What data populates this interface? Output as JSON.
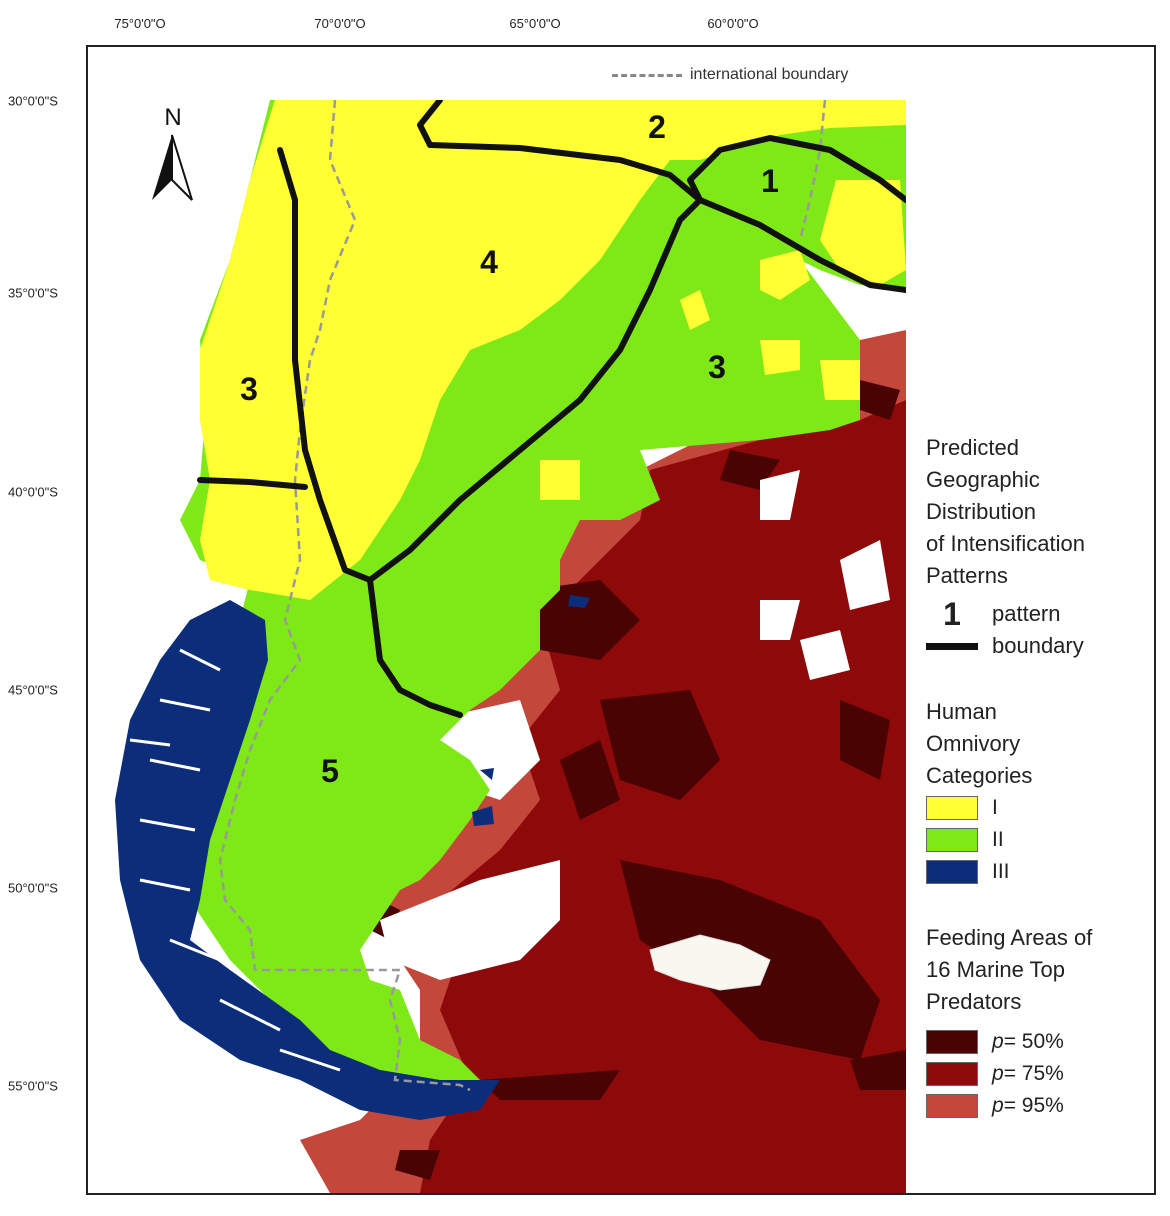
{
  "lon_ticks": [
    "75°0'0\"O",
    "70°0'0\"O",
    "65°0'0\"O",
    "60°0'0\"O"
  ],
  "lat_ticks": [
    "30°0'0\"S",
    "35°0'0\"S",
    "40°0'0\"S",
    "45°0'0\"S",
    "50°0'0\"S",
    "55°0'0\"S"
  ],
  "north_label": "N",
  "international_boundary_label": "international boundary",
  "region_labels": [
    "1",
    "2",
    "3",
    "3",
    "4",
    "5"
  ],
  "legend": {
    "title": [
      "Predicted",
      "Geographic",
      "Distribution",
      "of Intensification",
      "Patterns"
    ],
    "pattern_number": "1",
    "pattern_label": "pattern",
    "boundary_label": "boundary",
    "omnivory_title": [
      "Human",
      "Omnivory",
      "Categories"
    ],
    "omnivory": [
      {
        "label": "I",
        "color": "#ffff33"
      },
      {
        "label": "II",
        "color": "#7fe817"
      },
      {
        "label": "III",
        "color": "#0b2d7a"
      }
    ],
    "feeding_title": [
      "Feeding Areas of",
      "16 Marine Top",
      "Predators"
    ],
    "feeding": [
      {
        "p": "p",
        "label": "= 50%",
        "color": "#4a0303"
      },
      {
        "p": "p",
        "label": "= 75%",
        "color": "#8e0a0a"
      },
      {
        "p": "p",
        "label": "= 95%",
        "color": "#c4473c"
      }
    ]
  }
}
